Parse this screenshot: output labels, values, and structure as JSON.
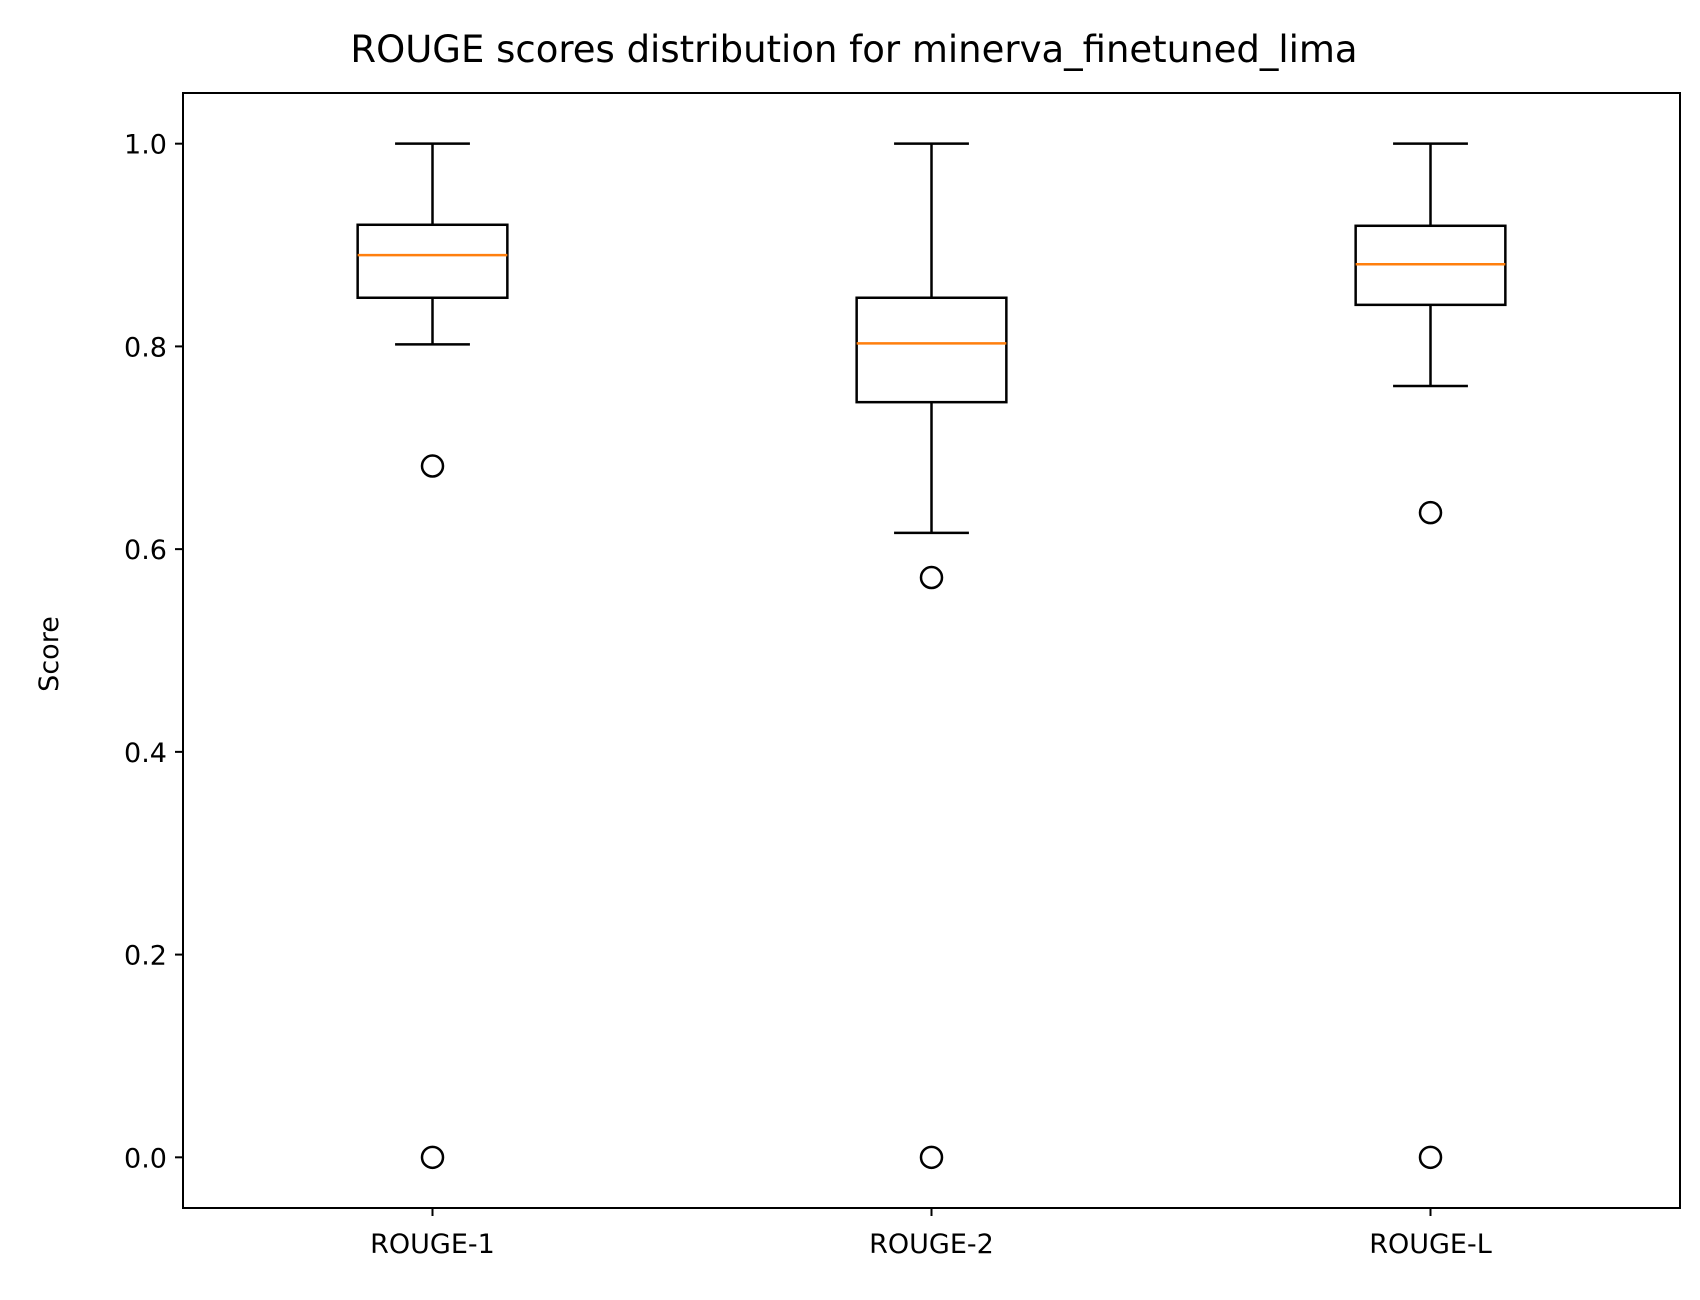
{
  "chart_data": {
    "type": "boxplot",
    "title": "ROUGE scores distribution for minerva_finetuned_lima",
    "xlabel": "",
    "ylabel": "Score",
    "ylim": [
      -0.05,
      1.05
    ],
    "yticks": [
      0.0,
      0.2,
      0.4,
      0.6,
      0.8,
      1.0
    ],
    "ytick_labels": [
      "0.0",
      "0.2",
      "0.4",
      "0.6",
      "0.8",
      "1.0"
    ],
    "grid": false,
    "categories": [
      "ROUGE-1",
      "ROUGE-2",
      "ROUGE-L"
    ],
    "boxes": [
      {
        "label": "ROUGE-1",
        "whisker_low": 0.802,
        "q1": 0.848,
        "median": 0.89,
        "q3": 0.92,
        "whisker_high": 1.0,
        "outliers": [
          0.682,
          0.0
        ]
      },
      {
        "label": "ROUGE-2",
        "whisker_low": 0.616,
        "q1": 0.745,
        "median": 0.803,
        "q3": 0.848,
        "whisker_high": 1.0,
        "outliers": [
          0.572,
          0.0
        ]
      },
      {
        "label": "ROUGE-L",
        "whisker_low": 0.761,
        "q1": 0.841,
        "median": 0.881,
        "q3": 0.919,
        "whisker_high": 1.0,
        "outliers": [
          0.636,
          0.0
        ]
      }
    ],
    "colors": {
      "box": "#000000",
      "median": "#ff7f0e",
      "background": "#ffffff"
    }
  }
}
